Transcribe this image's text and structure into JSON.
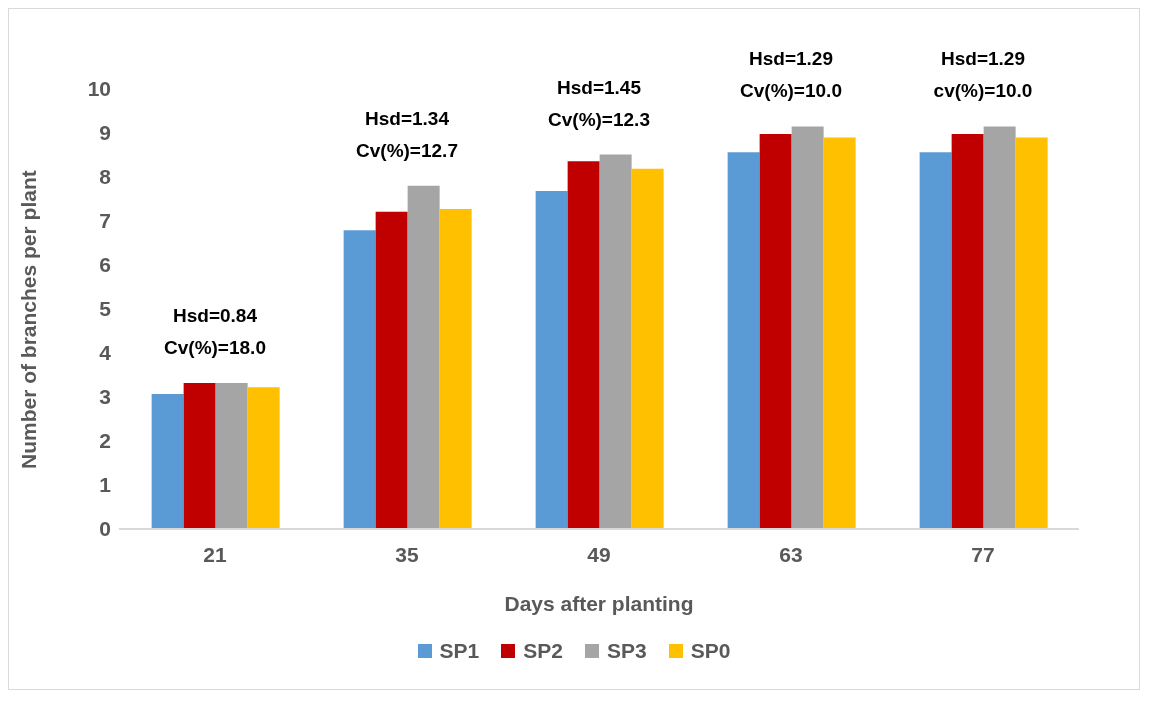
{
  "chart_data": {
    "type": "bar",
    "xlabel": "Days after planting",
    "ylabel": "Number of branches per plant",
    "categories": [
      "21",
      "35",
      "49",
      "63",
      "77"
    ],
    "series": [
      {
        "name": "SP1",
        "color": "#5b9bd5",
        "values": [
          3.07,
          6.79,
          7.68,
          8.56,
          8.56
        ]
      },
      {
        "name": "SP2",
        "color": "#c00000",
        "values": [
          3.32,
          7.21,
          8.36,
          8.98,
          8.98
        ]
      },
      {
        "name": "SP3",
        "color": "#a5a5a5",
        "values": [
          3.32,
          7.8,
          8.51,
          9.15,
          9.15
        ]
      },
      {
        "name": "SP0",
        "color": "#ffc000",
        "values": [
          3.22,
          7.27,
          8.19,
          8.9,
          8.9
        ]
      }
    ],
    "ylim": [
      0,
      10
    ],
    "yticks": [
      0,
      1,
      2,
      3,
      4,
      5,
      6,
      7,
      8,
      9,
      10
    ],
    "grid": false,
    "legend": "bottom",
    "annotations": [
      "Hsd=0.84",
      "Cv(%)=18.0",
      "Hsd=1.34",
      "Cv(%)=12.7",
      "Hsd=1.45",
      "Cv(%)=12.3",
      "Hsd=1.29",
      "Cv(%)=10.0",
      "Hsd=1.29",
      "cv(%)=10.0"
    ]
  }
}
